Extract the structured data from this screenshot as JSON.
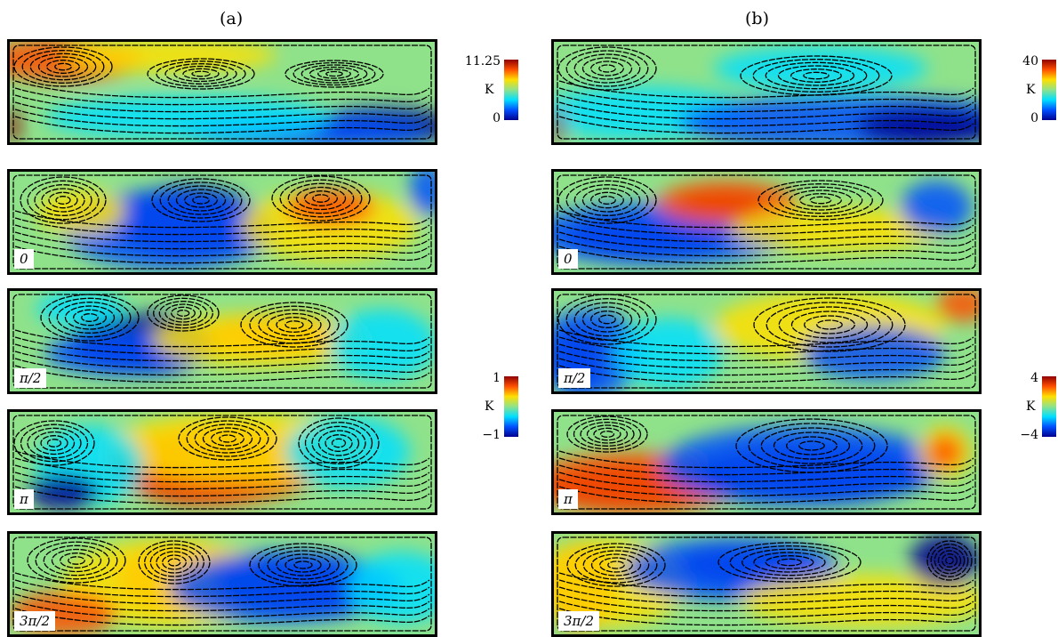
{
  "columns": [
    {
      "title": "(a)",
      "top_colorbar": {
        "max": "11.25",
        "unit": "K",
        "min": "0"
      },
      "bottom_colorbar": {
        "max": "1",
        "unit": "K",
        "min": "−1"
      },
      "phase_labels": [
        "0",
        "π/2",
        "π",
        "3π/2"
      ]
    },
    {
      "title": "(b)",
      "top_colorbar": {
        "max": "40",
        "unit": "K",
        "min": "0"
      },
      "bottom_colorbar": {
        "max": "4",
        "unit": "K",
        "min": "−4"
      },
      "phase_labels": [
        "0",
        "π/2",
        "π",
        "3π/2"
      ]
    }
  ],
  "colormap": [
    "#00008f",
    "#0050ff",
    "#00dfff",
    "#8fe28a",
    "#ffe000",
    "#ff5000",
    "#8f0000"
  ]
}
